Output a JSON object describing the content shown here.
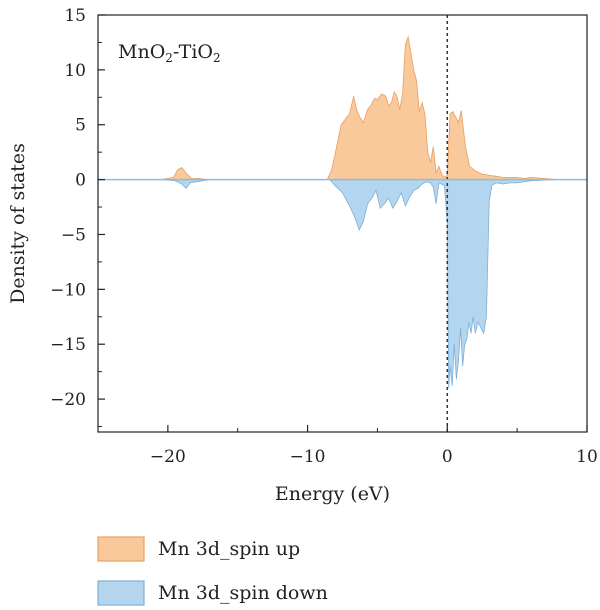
{
  "chart_data": {
    "type": "area",
    "title": "",
    "xlabel": "Energy (eV)",
    "ylabel": "Density of states",
    "xlim": [
      -25,
      10
    ],
    "ylim": [
      -23,
      15
    ],
    "xticks": [
      -20,
      -10,
      0,
      10
    ],
    "xtick_labels": [
      "−20",
      "−10",
      "0",
      "10"
    ],
    "yticks": [
      15,
      10,
      5,
      0,
      -5,
      -10,
      -15,
      -20
    ],
    "ytick_labels": [
      "15",
      "10",
      "5",
      "0",
      "−5",
      "−10",
      "−15",
      "−20"
    ],
    "grid": false,
    "legend_position": "bottom-left",
    "annotation": {
      "parts": [
        {
          "text": "MnO",
          "sub": false
        },
        {
          "text": "2",
          "sub": true
        },
        {
          "text": "-TiO",
          "sub": false
        },
        {
          "text": "2",
          "sub": true
        }
      ]
    },
    "fermi_level": 0,
    "series": [
      {
        "name": "Mn 3d_spin up",
        "color": "#f9c89b",
        "edge_color": "#e8a060",
        "x": [
          -25,
          -20.5,
          -19.6,
          -19.3,
          -19.0,
          -18.7,
          -18.3,
          -17.8,
          -17,
          -16,
          -14,
          -12,
          -10,
          -8.6,
          -8.3,
          -8.0,
          -7.6,
          -7.3,
          -7.0,
          -6.7,
          -6.5,
          -6.3,
          -6.0,
          -5.7,
          -5.5,
          -5.2,
          -5.0,
          -4.7,
          -4.4,
          -4.2,
          -4.0,
          -3.8,
          -3.6,
          -3.4,
          -3.2,
          -3.0,
          -2.8,
          -2.6,
          -2.4,
          -2.2,
          -2.0,
          -1.8,
          -1.6,
          -1.4,
          -1.2,
          -1.0,
          -0.8,
          -0.6,
          -0.4,
          -0.2,
          0.0,
          0.2,
          0.4,
          0.6,
          0.8,
          1.0,
          1.3,
          1.6,
          2.0,
          2.5,
          3.0,
          3.5,
          4.0,
          5.0,
          5.5,
          6.0,
          7.0,
          8.0,
          10
        ],
        "values": [
          0,
          0,
          0.2,
          0.9,
          1.1,
          0.6,
          0.1,
          0.1,
          0,
          0,
          0,
          0,
          0,
          0,
          0.8,
          2.5,
          5.0,
          5.5,
          6.0,
          7.6,
          6.4,
          5.8,
          5.2,
          6.4,
          6.7,
          7.4,
          7.3,
          7.8,
          7.6,
          6.7,
          7.0,
          8.0,
          7.6,
          6.4,
          7.8,
          12.3,
          13.0,
          11.5,
          10.0,
          9.0,
          6.2,
          7.0,
          6.0,
          2.5,
          1.6,
          3.0,
          0.6,
          1.2,
          0.5,
          0.2,
          0.4,
          6.0,
          6.2,
          5.7,
          5.2,
          6.3,
          3.0,
          1.2,
          0.8,
          0.5,
          0.4,
          0.3,
          0.2,
          0.2,
          0.1,
          0.2,
          0.1,
          0,
          0
        ]
      },
      {
        "name": "Mn 3d_spin down",
        "color": "#b3d5ee",
        "edge_color": "#7fb0d8",
        "x": [
          -25,
          -20.5,
          -19.5,
          -19.0,
          -18.7,
          -18.4,
          -18.0,
          -17.5,
          -17,
          -16,
          -14,
          -12,
          -10,
          -8.4,
          -8.0,
          -7.5,
          -7.0,
          -6.6,
          -6.3,
          -6.0,
          -5.7,
          -5.4,
          -5.1,
          -4.8,
          -4.5,
          -4.2,
          -3.9,
          -3.6,
          -3.3,
          -3.0,
          -2.7,
          -2.4,
          -2.1,
          -1.8,
          -1.5,
          -1.2,
          -1.0,
          -0.8,
          -0.6,
          -0.4,
          -0.2,
          0.0,
          0.1,
          0.2,
          0.35,
          0.5,
          0.65,
          0.8,
          0.95,
          1.1,
          1.25,
          1.4,
          1.55,
          1.7,
          1.85,
          2.0,
          2.2,
          2.4,
          2.6,
          2.8,
          3.0,
          3.2,
          3.5,
          4.0,
          4.5,
          5.0,
          6.0,
          8.0,
          10
        ],
        "values": [
          0,
          0,
          -0.1,
          -0.4,
          -0.8,
          -0.3,
          -0.2,
          -0.1,
          0,
          0,
          0,
          0,
          0,
          0,
          -0.6,
          -1.2,
          -2.4,
          -3.5,
          -4.6,
          -3.8,
          -2.2,
          -1.7,
          -1.0,
          -2.6,
          -2.2,
          -1.7,
          -2.6,
          -2.0,
          -1.2,
          -2.4,
          -1.6,
          -1.0,
          -0.8,
          -0.4,
          -0.2,
          -0.3,
          -0.7,
          -2.2,
          -0.3,
          -0.4,
          -0.6,
          -4.0,
          -19.0,
          -17.0,
          -18.8,
          -15.0,
          -18.2,
          -16.5,
          -13.5,
          -17.0,
          -15.0,
          -14.5,
          -13.0,
          -14.0,
          -12.5,
          -14.0,
          -13.0,
          -13.5,
          -14.0,
          -12.5,
          -2.0,
          -0.5,
          -0.3,
          -0.4,
          -0.3,
          -0.3,
          -0.1,
          0,
          0
        ]
      }
    ]
  }
}
